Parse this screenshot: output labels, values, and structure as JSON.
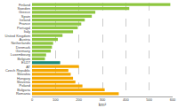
{
  "chart_data": {
    "type": "bar",
    "orientation": "horizontal",
    "categories": [
      "Finland",
      "Sweden",
      "Greece",
      "Spain",
      "Ireland",
      "France",
      "Portugal",
      "Italy",
      "United Kingdom",
      "Austria",
      "Netherlands",
      "Denmark",
      "Germany",
      "Luxembourg",
      "Belgium",
      "EU27",
      "AT",
      "Czech Republic",
      "Slovakia",
      "Hungary",
      "Slovenia",
      "Poland",
      "Bulgaria",
      "Romania"
    ],
    "values": [
      590,
      415,
      270,
      255,
      225,
      210,
      195,
      175,
      130,
      110,
      90,
      85,
      80,
      60,
      55,
      120,
      200,
      155,
      165,
      175,
      185,
      215,
      310,
      370
    ],
    "colors": [
      "#8dc63f",
      "#8dc63f",
      "#8dc63f",
      "#8dc63f",
      "#8dc63f",
      "#8dc63f",
      "#8dc63f",
      "#8dc63f",
      "#8dc63f",
      "#8dc63f",
      "#8dc63f",
      "#8dc63f",
      "#8dc63f",
      "#8dc63f",
      "#8dc63f",
      "#1a8a7a",
      "#f5a800",
      "#f5a800",
      "#f5a800",
      "#f5a800",
      "#f5a800",
      "#f5a800",
      "#f5a800",
      "#f5a800"
    ],
    "xlabel": "km²",
    "xlim": [
      0,
      600
    ],
    "xticks": [
      0,
      100,
      200,
      300,
      400,
      500,
      600
    ],
    "grid": true
  }
}
